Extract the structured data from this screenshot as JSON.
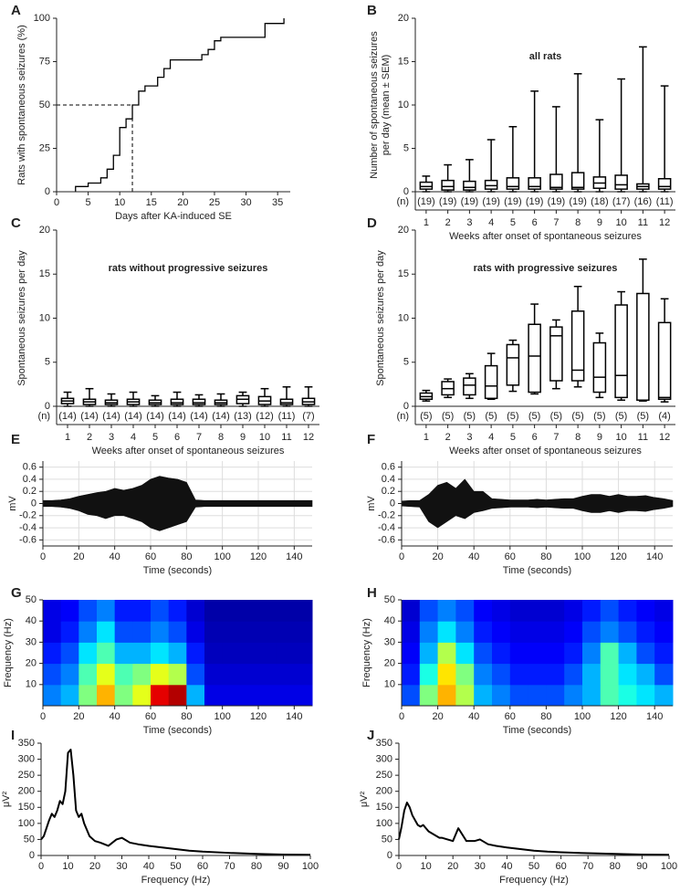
{
  "chart_data": [
    {
      "panel": "A",
      "type": "step",
      "color": "#000000",
      "xlabel": "Days after KA-induced SE",
      "ylabel": [
        "Rats with spontaneous seizures (%)"
      ],
      "x": [
        3,
        5,
        7,
        8,
        9,
        10,
        11,
        12,
        13,
        14,
        16,
        17,
        18,
        21,
        23,
        24,
        25,
        26,
        33,
        36
      ],
      "y": [
        3,
        5,
        8,
        13,
        21,
        37,
        42,
        50,
        58,
        61,
        66,
        71,
        76,
        76,
        79,
        82,
        87,
        89,
        97,
        100
      ],
      "ref_x": 12,
      "ref_y": 50,
      "xlim": [
        0,
        37
      ],
      "xticks": [
        0,
        5,
        10,
        15,
        20,
        25,
        30,
        35
      ],
      "ylim": [
        0,
        100
      ],
      "yticks": [
        0,
        25,
        50,
        75,
        100
      ]
    },
    {
      "panel": "B",
      "type": "box",
      "color": "#000000",
      "title": "all rats",
      "xlabel": "Weeks after onset of spontaneous seizures",
      "ylabel": [
        "Number of spontaneous seizures",
        "per day (mean ± SEM)"
      ],
      "categories": [
        "1",
        "2",
        "3",
        "4",
        "5",
        "6",
        "7",
        "8",
        "9",
        "10",
        "11",
        "12"
      ],
      "n_header": "(n)",
      "n_labels": [
        "(19)",
        "(19)",
        "(19)",
        "(19)",
        "(19)",
        "(19)",
        "(19)",
        "(19)",
        "(18)",
        "(17)",
        "(16)",
        "(11)"
      ],
      "min": [
        0,
        0,
        0,
        0,
        0,
        0,
        0,
        0,
        0,
        0,
        0,
        0
      ],
      "q1": [
        0.3,
        0.2,
        0.2,
        0.3,
        0.3,
        0.3,
        0.3,
        0.3,
        0.4,
        0.3,
        0.3,
        0.3
      ],
      "median": [
        0.6,
        0.6,
        0.5,
        0.7,
        0.6,
        0.6,
        0.5,
        0.5,
        1.0,
        0.8,
        0.6,
        0.6
      ],
      "q3": [
        1.1,
        1.3,
        1.2,
        1.3,
        1.6,
        1.6,
        2.0,
        2.2,
        1.7,
        1.9,
        0.9,
        1.5
      ],
      "max": [
        1.8,
        3.1,
        3.7,
        6.0,
        7.5,
        11.6,
        9.8,
        13.6,
        8.3,
        13.0,
        16.7,
        12.2
      ],
      "ylim": [
        0,
        20
      ],
      "yticks": [
        0,
        5,
        10,
        15,
        20
      ]
    },
    {
      "panel": "C",
      "type": "box",
      "color": "#000000",
      "title": "rats without progressive seizures",
      "xlabel": "Weeks after onset of spontaneous seizures",
      "ylabel": [
        "Spontaneous seizures per day"
      ],
      "categories": [
        "1",
        "2",
        "3",
        "4",
        "5",
        "6",
        "7",
        "8",
        "9",
        "10",
        "11",
        "12"
      ],
      "n_header": "(n)",
      "n_labels": [
        "(14)",
        "(14)",
        "(14)",
        "(14)",
        "(14)",
        "(14)",
        "(14)",
        "(14)",
        "(13)",
        "(12)",
        "(11)",
        "(7)"
      ],
      "min": [
        0,
        0,
        0,
        0,
        0,
        0,
        0,
        0,
        0,
        0,
        0,
        0
      ],
      "q1": [
        0.3,
        0.2,
        0.2,
        0.2,
        0.2,
        0.2,
        0.2,
        0.2,
        0.3,
        0.2,
        0.2,
        0.2
      ],
      "median": [
        0.6,
        0.5,
        0.4,
        0.5,
        0.4,
        0.4,
        0.4,
        0.4,
        0.8,
        0.6,
        0.4,
        0.5
      ],
      "q3": [
        0.9,
        0.8,
        0.7,
        0.8,
        0.7,
        0.8,
        0.8,
        0.7,
        1.2,
        1.1,
        0.8,
        0.9
      ],
      "max": [
        1.6,
        2.0,
        1.4,
        1.6,
        1.2,
        1.6,
        1.3,
        1.4,
        1.6,
        2.0,
        2.2,
        2.2
      ],
      "ylim": [
        0,
        20
      ],
      "yticks": [
        0,
        5,
        10,
        15,
        20
      ]
    },
    {
      "panel": "D",
      "type": "box",
      "color": "#000000",
      "title": "rats with progressive seizures",
      "xlabel": "Weeks after onset of spontaneous seizures",
      "ylabel": [
        "Spontaneous seizures per day"
      ],
      "categories": [
        "1",
        "2",
        "3",
        "4",
        "5",
        "6",
        "7",
        "8",
        "9",
        "10",
        "11",
        "12"
      ],
      "n_header": "(n)",
      "n_labels": [
        "(5)",
        "(5)",
        "(5)",
        "(5)",
        "(5)",
        "(5)",
        "(5)",
        "(5)",
        "(5)",
        "(5)",
        "(5)",
        "(4)"
      ],
      "min": [
        0.6,
        1.0,
        0.9,
        0.8,
        1.7,
        1.4,
        2.0,
        2.2,
        1.0,
        0.7,
        0.6,
        0.5
      ],
      "q1": [
        0.8,
        1.3,
        1.3,
        0.9,
        2.4,
        1.6,
        2.9,
        2.9,
        1.6,
        1.0,
        0.7,
        0.8
      ],
      "median": [
        1.1,
        2.0,
        2.4,
        2.3,
        5.5,
        5.7,
        8.0,
        4.1,
        3.3,
        3.5,
        0.7,
        1.0
      ],
      "q3": [
        1.5,
        2.8,
        3.2,
        4.6,
        7.0,
        9.3,
        9.0,
        10.8,
        7.2,
        11.5,
        12.8,
        9.5
      ],
      "max": [
        1.8,
        3.1,
        3.7,
        6.0,
        7.5,
        11.6,
        9.8,
        13.6,
        8.3,
        13.0,
        16.7,
        12.2
      ],
      "ylim": [
        0,
        20
      ],
      "yticks": [
        0,
        5,
        10,
        15,
        20
      ]
    },
    {
      "panel": "E",
      "type": "area",
      "color": "#111111",
      "grid": true,
      "xlabel": "Time (seconds)",
      "ylabel": [
        "mV"
      ],
      "x": [
        0,
        5,
        10,
        15,
        20,
        25,
        30,
        35,
        40,
        45,
        50,
        55,
        60,
        65,
        70,
        75,
        80,
        85,
        90,
        95,
        100,
        105,
        110,
        115,
        120,
        125,
        130,
        135,
        140,
        145,
        150
      ],
      "upper": [
        0.05,
        0.05,
        0.06,
        0.08,
        0.12,
        0.15,
        0.18,
        0.2,
        0.25,
        0.22,
        0.25,
        0.3,
        0.4,
        0.45,
        0.42,
        0.4,
        0.35,
        0.06,
        0.05,
        0.05,
        0.05,
        0.05,
        0.05,
        0.05,
        0.05,
        0.05,
        0.05,
        0.05,
        0.05,
        0.05,
        0.05
      ],
      "lower": [
        -0.05,
        -0.05,
        -0.06,
        -0.08,
        -0.12,
        -0.18,
        -0.2,
        -0.25,
        -0.2,
        -0.2,
        -0.25,
        -0.3,
        -0.4,
        -0.45,
        -0.4,
        -0.35,
        -0.3,
        -0.06,
        -0.05,
        -0.05,
        -0.05,
        -0.05,
        -0.05,
        -0.05,
        -0.05,
        -0.05,
        -0.05,
        -0.05,
        -0.05,
        -0.05,
        -0.05
      ],
      "xlim": [
        0,
        150
      ],
      "xticks": [
        0,
        20,
        40,
        60,
        80,
        100,
        120,
        140
      ],
      "ylim": [
        -0.7,
        0.7
      ],
      "yticks": [
        -0.6,
        -0.4,
        -0.2,
        0,
        0.2,
        0.4,
        0.6
      ]
    },
    {
      "panel": "F",
      "type": "area",
      "color": "#111111",
      "grid": true,
      "xlabel": "Time (seconds)",
      "ylabel": [
        "mV"
      ],
      "x": [
        0,
        5,
        10,
        15,
        20,
        25,
        30,
        35,
        40,
        45,
        50,
        55,
        60,
        65,
        70,
        75,
        80,
        85,
        90,
        95,
        100,
        105,
        110,
        115,
        120,
        125,
        130,
        135,
        140,
        145,
        150
      ],
      "upper": [
        0.04,
        0.05,
        0.05,
        0.15,
        0.3,
        0.35,
        0.25,
        0.4,
        0.2,
        0.2,
        0.08,
        0.07,
        0.06,
        0.06,
        0.06,
        0.07,
        0.06,
        0.07,
        0.08,
        0.08,
        0.12,
        0.15,
        0.15,
        0.12,
        0.15,
        0.12,
        0.12,
        0.13,
        0.1,
        0.08,
        0.05
      ],
      "lower": [
        -0.04,
        -0.05,
        -0.06,
        -0.3,
        -0.4,
        -0.3,
        -0.2,
        -0.25,
        -0.15,
        -0.12,
        -0.08,
        -0.07,
        -0.06,
        -0.06,
        -0.06,
        -0.07,
        -0.06,
        -0.07,
        -0.08,
        -0.08,
        -0.12,
        -0.15,
        -0.15,
        -0.12,
        -0.15,
        -0.12,
        -0.12,
        -0.13,
        -0.1,
        -0.08,
        -0.05
      ],
      "xlim": [
        0,
        150
      ],
      "xticks": [
        0,
        20,
        40,
        60,
        80,
        100,
        120,
        140
      ],
      "ylim": [
        -0.7,
        0.7
      ],
      "yticks": [
        -0.6,
        -0.4,
        -0.2,
        0,
        0.2,
        0.4,
        0.6
      ]
    },
    {
      "panel": "G",
      "type": "heatmap",
      "colormap": "jet",
      "xlabel": "Time (seconds)",
      "ylabel": [
        "Frequency (Hz)"
      ],
      "z": [
        [
          0.25,
          0.3,
          0.5,
          0.7,
          0.5,
          0.6,
          0.9,
          0.95,
          0.3,
          0.1,
          0.1,
          0.1,
          0.1,
          0.1,
          0.1
        ],
        [
          0.2,
          0.25,
          0.45,
          0.6,
          0.45,
          0.5,
          0.6,
          0.55,
          0.2,
          0.08,
          0.08,
          0.08,
          0.08,
          0.08,
          0.08
        ],
        [
          0.15,
          0.2,
          0.35,
          0.45,
          0.3,
          0.3,
          0.35,
          0.3,
          0.15,
          0.06,
          0.06,
          0.06,
          0.06,
          0.06,
          0.06
        ],
        [
          0.1,
          0.15,
          0.25,
          0.35,
          0.2,
          0.2,
          0.25,
          0.2,
          0.1,
          0.05,
          0.05,
          0.05,
          0.05,
          0.05,
          0.05
        ],
        [
          0.1,
          0.12,
          0.2,
          0.25,
          0.15,
          0.15,
          0.2,
          0.15,
          0.08,
          0.04,
          0.04,
          0.04,
          0.04,
          0.04,
          0.04
        ]
      ],
      "xlim": [
        0,
        150
      ],
      "xticks": [
        0,
        20,
        40,
        60,
        80,
        100,
        120,
        140
      ],
      "ylim": [
        0,
        50
      ],
      "yticks": [
        10,
        20,
        30,
        40,
        50
      ]
    },
    {
      "panel": "H",
      "type": "heatmap",
      "colormap": "jet",
      "xlabel": "Time (seconds)",
      "ylabel": [
        "Frequency (Hz)"
      ],
      "z": [
        [
          0.2,
          0.5,
          0.7,
          0.55,
          0.3,
          0.25,
          0.2,
          0.2,
          0.2,
          0.25,
          0.3,
          0.45,
          0.4,
          0.35,
          0.3
        ],
        [
          0.15,
          0.4,
          0.65,
          0.5,
          0.25,
          0.2,
          0.15,
          0.15,
          0.15,
          0.2,
          0.3,
          0.45,
          0.35,
          0.3,
          0.2
        ],
        [
          0.12,
          0.3,
          0.55,
          0.35,
          0.2,
          0.15,
          0.12,
          0.12,
          0.12,
          0.15,
          0.25,
          0.45,
          0.3,
          0.2,
          0.15
        ],
        [
          0.1,
          0.25,
          0.35,
          0.25,
          0.15,
          0.12,
          0.1,
          0.1,
          0.1,
          0.12,
          0.2,
          0.25,
          0.2,
          0.15,
          0.12
        ],
        [
          0.08,
          0.2,
          0.25,
          0.2,
          0.12,
          0.1,
          0.08,
          0.08,
          0.08,
          0.1,
          0.15,
          0.2,
          0.15,
          0.12,
          0.1
        ]
      ],
      "xlim": [
        0,
        150
      ],
      "xticks": [
        0,
        20,
        40,
        60,
        80,
        100,
        120,
        140
      ],
      "ylim": [
        0,
        50
      ],
      "yticks": [
        10,
        20,
        30,
        40,
        50
      ]
    },
    {
      "panel": "I",
      "type": "line",
      "color": "#000000",
      "xlabel": "Frequency (Hz)",
      "ylabel": [
        "μV²"
      ],
      "x": [
        0,
        1,
        2,
        3,
        4,
        5,
        6,
        7,
        8,
        9,
        10,
        11,
        12,
        13,
        14,
        15,
        16,
        18,
        20,
        22,
        25,
        28,
        30,
        33,
        36,
        40,
        45,
        50,
        55,
        60,
        70,
        80,
        90,
        100
      ],
      "y": [
        50,
        60,
        85,
        110,
        130,
        120,
        140,
        170,
        160,
        200,
        320,
        330,
        250,
        140,
        120,
        130,
        100,
        60,
        45,
        40,
        30,
        50,
        55,
        40,
        35,
        30,
        25,
        20,
        15,
        12,
        8,
        5,
        3,
        2
      ],
      "xlim": [
        0,
        100
      ],
      "xticks": [
        0,
        10,
        20,
        30,
        40,
        50,
        60,
        70,
        80,
        90,
        100
      ],
      "ylim": [
        0,
        350
      ],
      "yticks": [
        0,
        50,
        100,
        150,
        200,
        250,
        300,
        350
      ]
    },
    {
      "panel": "J",
      "type": "line",
      "color": "#000000",
      "xlabel": "Frequency (Hz)",
      "ylabel": [
        "μV²"
      ],
      "x": [
        0,
        1,
        2,
        3,
        4,
        5,
        6,
        7,
        8,
        9,
        10,
        11,
        12,
        13,
        14,
        15,
        16,
        18,
        20,
        22,
        25,
        28,
        30,
        33,
        36,
        40,
        45,
        50,
        55,
        60,
        70,
        80,
        90,
        100
      ],
      "y": [
        50,
        90,
        140,
        165,
        150,
        125,
        110,
        95,
        90,
        95,
        85,
        75,
        70,
        65,
        60,
        55,
        55,
        50,
        45,
        85,
        45,
        45,
        50,
        35,
        30,
        25,
        20,
        15,
        12,
        10,
        7,
        5,
        3,
        2
      ],
      "xlim": [
        0,
        100
      ],
      "xticks": [
        0,
        10,
        20,
        30,
        40,
        50,
        60,
        70,
        80,
        90,
        100
      ],
      "ylim": [
        0,
        350
      ],
      "yticks": [
        0,
        50,
        100,
        150,
        200,
        250,
        300,
        350
      ]
    }
  ]
}
